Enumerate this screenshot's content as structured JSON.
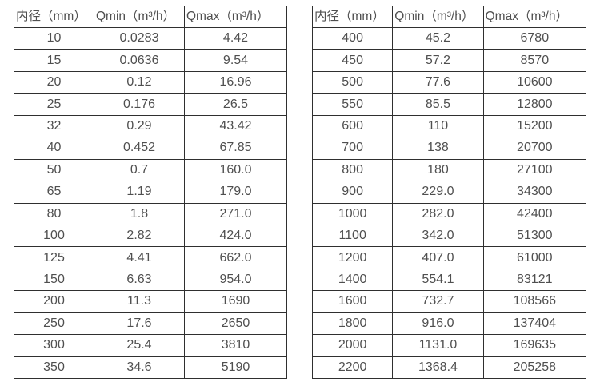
{
  "colors": {
    "background": "#ffffff",
    "border": "#2f2f2f",
    "text": "#4f4f4f"
  },
  "tables": {
    "left": {
      "title": "small-diameter-flow-ranges",
      "headers": [
        "内径（mm）",
        "Qmin（m³/h）",
        "Qmax（m³/h）"
      ],
      "rows": [
        [
          "10",
          "0.0283",
          "4.42"
        ],
        [
          "15",
          "0.0636",
          "9.54"
        ],
        [
          "20",
          "0.12",
          "16.96"
        ],
        [
          "25",
          "0.176",
          "26.5"
        ],
        [
          "32",
          "0.29",
          "43.42"
        ],
        [
          "40",
          "0.452",
          "67.85"
        ],
        [
          "50",
          "0.7",
          "160.0"
        ],
        [
          "65",
          "1.19",
          "179.0"
        ],
        [
          "80",
          "1.8",
          "271.0"
        ],
        [
          "100",
          "2.82",
          "424.0"
        ],
        [
          "125",
          "4.41",
          "662.0"
        ],
        [
          "150",
          "6.63",
          "954.0"
        ],
        [
          "200",
          "11.3",
          "1690"
        ],
        [
          "250",
          "17.6",
          "2650"
        ],
        [
          "300",
          "25.4",
          "3810"
        ],
        [
          "350",
          "34.6",
          "5190"
        ]
      ]
    },
    "right": {
      "title": "large-diameter-flow-ranges",
      "headers": [
        "内径（mm）",
        "Qmin（m³/h）",
        "Qmax（m³/h）"
      ],
      "rows": [
        [
          "400",
          "45.2",
          "6780"
        ],
        [
          "450",
          "57.2",
          "8570"
        ],
        [
          "500",
          "77.6",
          "10600"
        ],
        [
          "550",
          "85.5",
          "12800"
        ],
        [
          "600",
          "110",
          "15200"
        ],
        [
          "700",
          "138",
          "20700"
        ],
        [
          "800",
          "180",
          "27100"
        ],
        [
          "900",
          "229.0",
          "34300"
        ],
        [
          "1000",
          "282.0",
          "42400"
        ],
        [
          "1100",
          "342.0",
          "51300"
        ],
        [
          "1200",
          "407.0",
          "61000"
        ],
        [
          "1400",
          "554.1",
          "83121"
        ],
        [
          "1600",
          "732.7",
          "108566"
        ],
        [
          "1800",
          "916.0",
          "137404"
        ],
        [
          "2000",
          "1131.0",
          "169635"
        ],
        [
          "2200",
          "1368.4",
          "205258"
        ]
      ]
    }
  }
}
